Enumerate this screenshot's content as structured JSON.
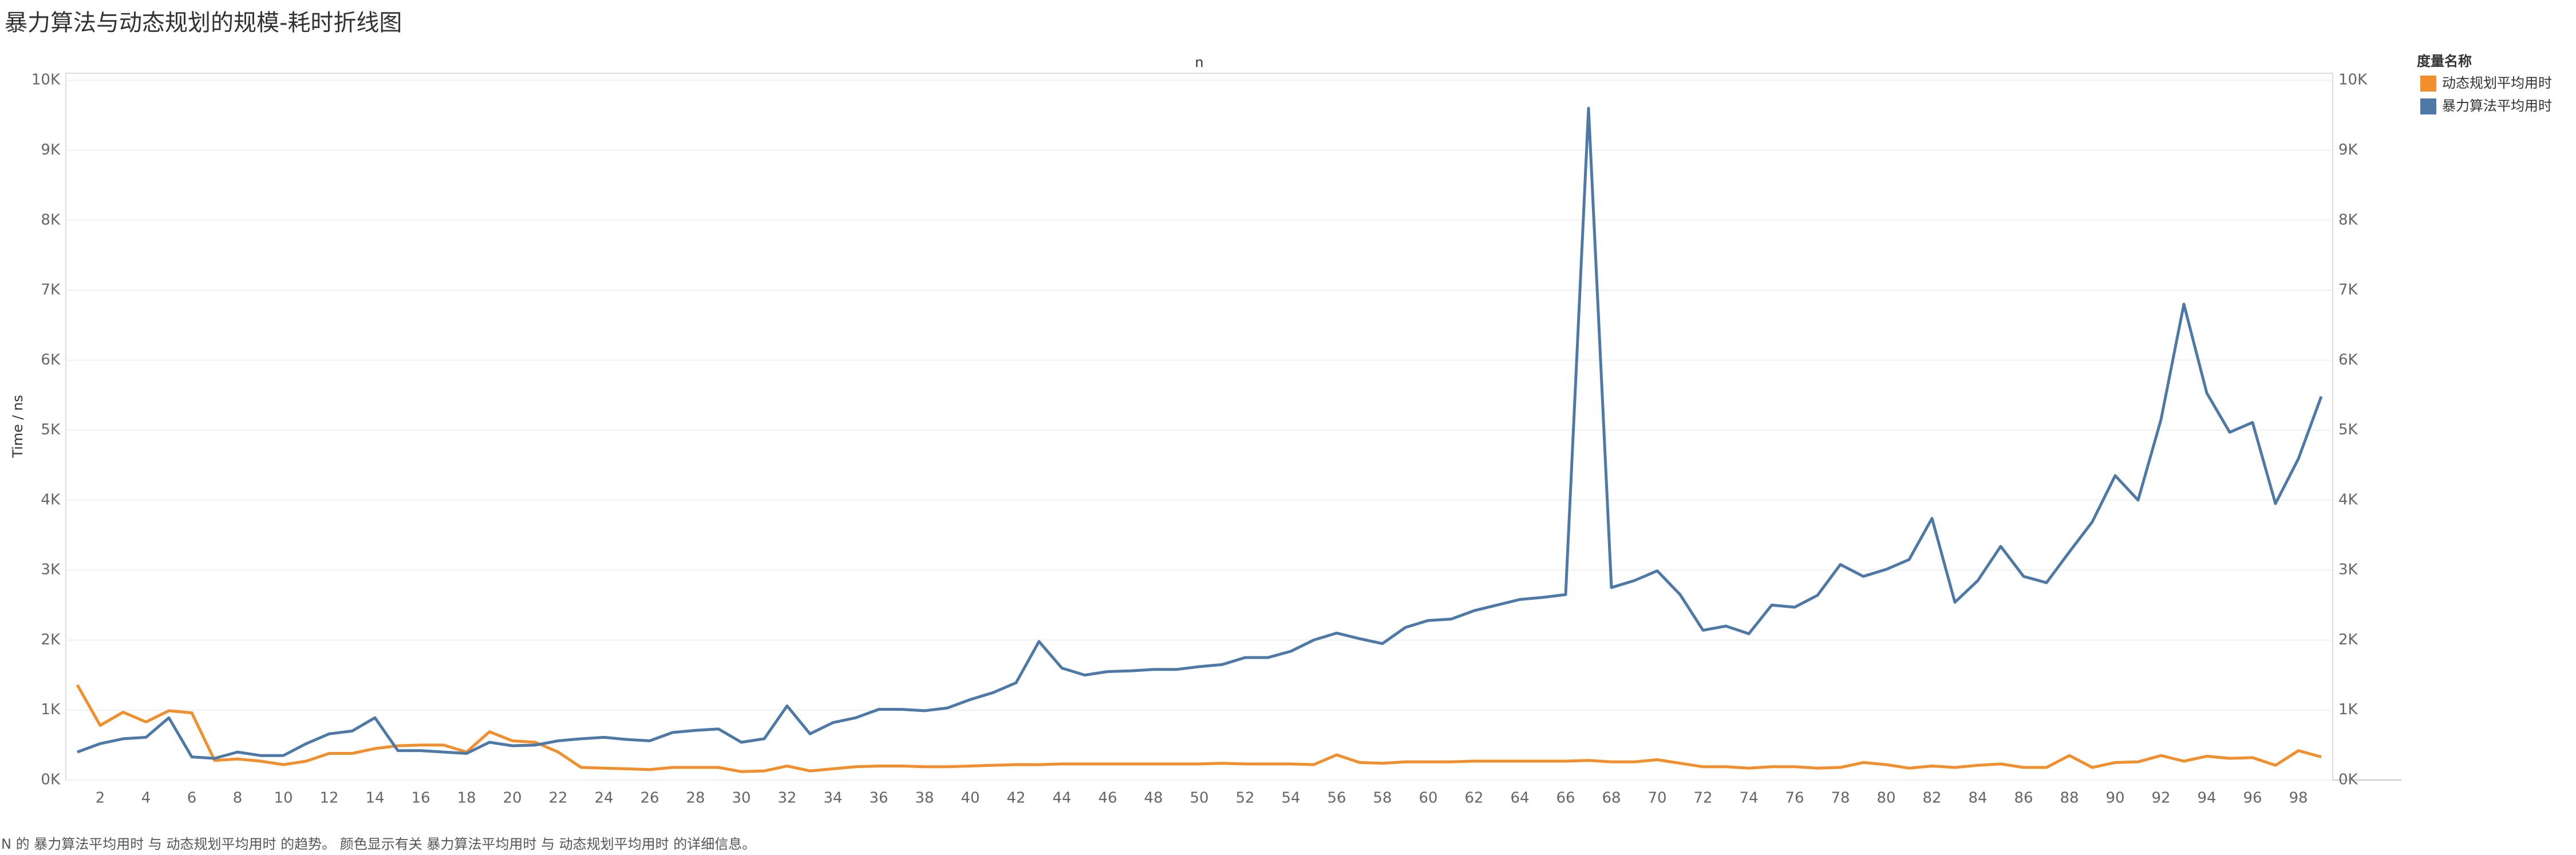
{
  "chart_data": {
    "type": "line",
    "title": "暴力算法与动态规划的规模-耗时折线图",
    "xlabel": "n",
    "ylabel": "Time / ns",
    "legend_title": "度量名称",
    "caption": "N 的 暴力算法平均用时 与 动态规划平均用时 的趋势。 颜色显示有关 暴力算法平均用时 与 动态规划平均用时 的详细信息。",
    "legend_position": "right",
    "grid": true,
    "categories": [
      null,
      "2",
      null,
      "4",
      null,
      "6",
      null,
      "8",
      null,
      "10",
      null,
      "12",
      null,
      "14",
      null,
      "16",
      null,
      "18",
      null,
      "20",
      null,
      "22",
      null,
      "24",
      null,
      "26",
      null,
      "28",
      null,
      "30",
      null,
      "32",
      null,
      "34",
      null,
      "36",
      null,
      "38",
      null,
      "40",
      null,
      "42",
      null,
      "44",
      null,
      "46",
      null,
      "48",
      null,
      "50",
      null,
      "52",
      null,
      "54",
      null,
      "56",
      null,
      "58",
      null,
      "60",
      null,
      "62",
      null,
      "64",
      null,
      "66",
      null,
      "68",
      null,
      "70",
      null,
      "72",
      null,
      "74",
      null,
      "76",
      null,
      "78",
      null,
      "80",
      null,
      "82",
      null,
      "84",
      null,
      "86",
      null,
      "88",
      null,
      "90",
      null,
      "92",
      null,
      "94",
      null,
      "96",
      null,
      "98",
      null
    ],
    "ylim": [
      0,
      10100
    ],
    "yticks": [
      {
        "value": 0,
        "label": "0K"
      },
      {
        "value": 1000,
        "label": "1K"
      },
      {
        "value": 2000,
        "label": "2K"
      },
      {
        "value": 3000,
        "label": "3K"
      },
      {
        "value": 4000,
        "label": "4K"
      },
      {
        "value": 5000,
        "label": "5K"
      },
      {
        "value": 6000,
        "label": "6K"
      },
      {
        "value": 7000,
        "label": "7K"
      },
      {
        "value": 8000,
        "label": "8K"
      },
      {
        "value": 9000,
        "label": "9K"
      },
      {
        "value": 10000,
        "label": "10K"
      }
    ],
    "series": [
      {
        "name": "动态规划平均用时",
        "color": "#f28e2b",
        "values": [
          1360,
          780,
          970,
          830,
          990,
          960,
          280,
          300,
          270,
          220,
          270,
          380,
          380,
          450,
          490,
          500,
          500,
          400,
          690,
          560,
          540,
          400,
          180,
          170,
          160,
          150,
          180,
          180,
          180,
          120,
          130,
          200,
          130,
          160,
          190,
          200,
          200,
          190,
          190,
          200,
          210,
          220,
          220,
          230,
          230,
          230,
          230,
          230,
          230,
          230,
          240,
          230,
          230,
          230,
          220,
          360,
          250,
          240,
          260,
          260,
          260,
          270,
          270,
          270,
          270,
          270,
          280,
          260,
          260,
          290,
          240,
          190,
          190,
          170,
          190,
          190,
          170,
          180,
          250,
          220,
          170,
          200,
          180,
          210,
          230,
          180,
          180,
          350,
          180,
          250,
          260,
          350,
          270,
          340,
          310,
          320,
          210,
          420,
          330
        ]
      },
      {
        "name": "暴力算法平均用时",
        "color": "#4e79a7",
        "values": [
          400,
          520,
          590,
          610,
          890,
          330,
          310,
          400,
          350,
          350,
          520,
          660,
          700,
          890,
          420,
          420,
          400,
          380,
          540,
          490,
          500,
          560,
          590,
          610,
          580,
          560,
          680,
          710,
          730,
          540,
          590,
          1060,
          660,
          820,
          890,
          1010,
          1010,
          990,
          1030,
          1150,
          1250,
          1390,
          1980,
          1600,
          1500,
          1550,
          1560,
          1580,
          1580,
          1620,
          1650,
          1750,
          1750,
          1840,
          2000,
          2100,
          2020,
          1950,
          2180,
          2280,
          2300,
          2420,
          2500,
          2580,
          2610,
          2650,
          9600,
          2750,
          2850,
          2990,
          2650,
          2140,
          2200,
          2090,
          2500,
          2470,
          2640,
          3080,
          2910,
          3010,
          3150,
          3740,
          2540,
          2850,
          3340,
          2910,
          2820,
          3260,
          3690,
          4350,
          4000,
          5150,
          6800,
          5530,
          4970,
          5110,
          3950,
          4590,
          5480
        ]
      }
    ]
  }
}
